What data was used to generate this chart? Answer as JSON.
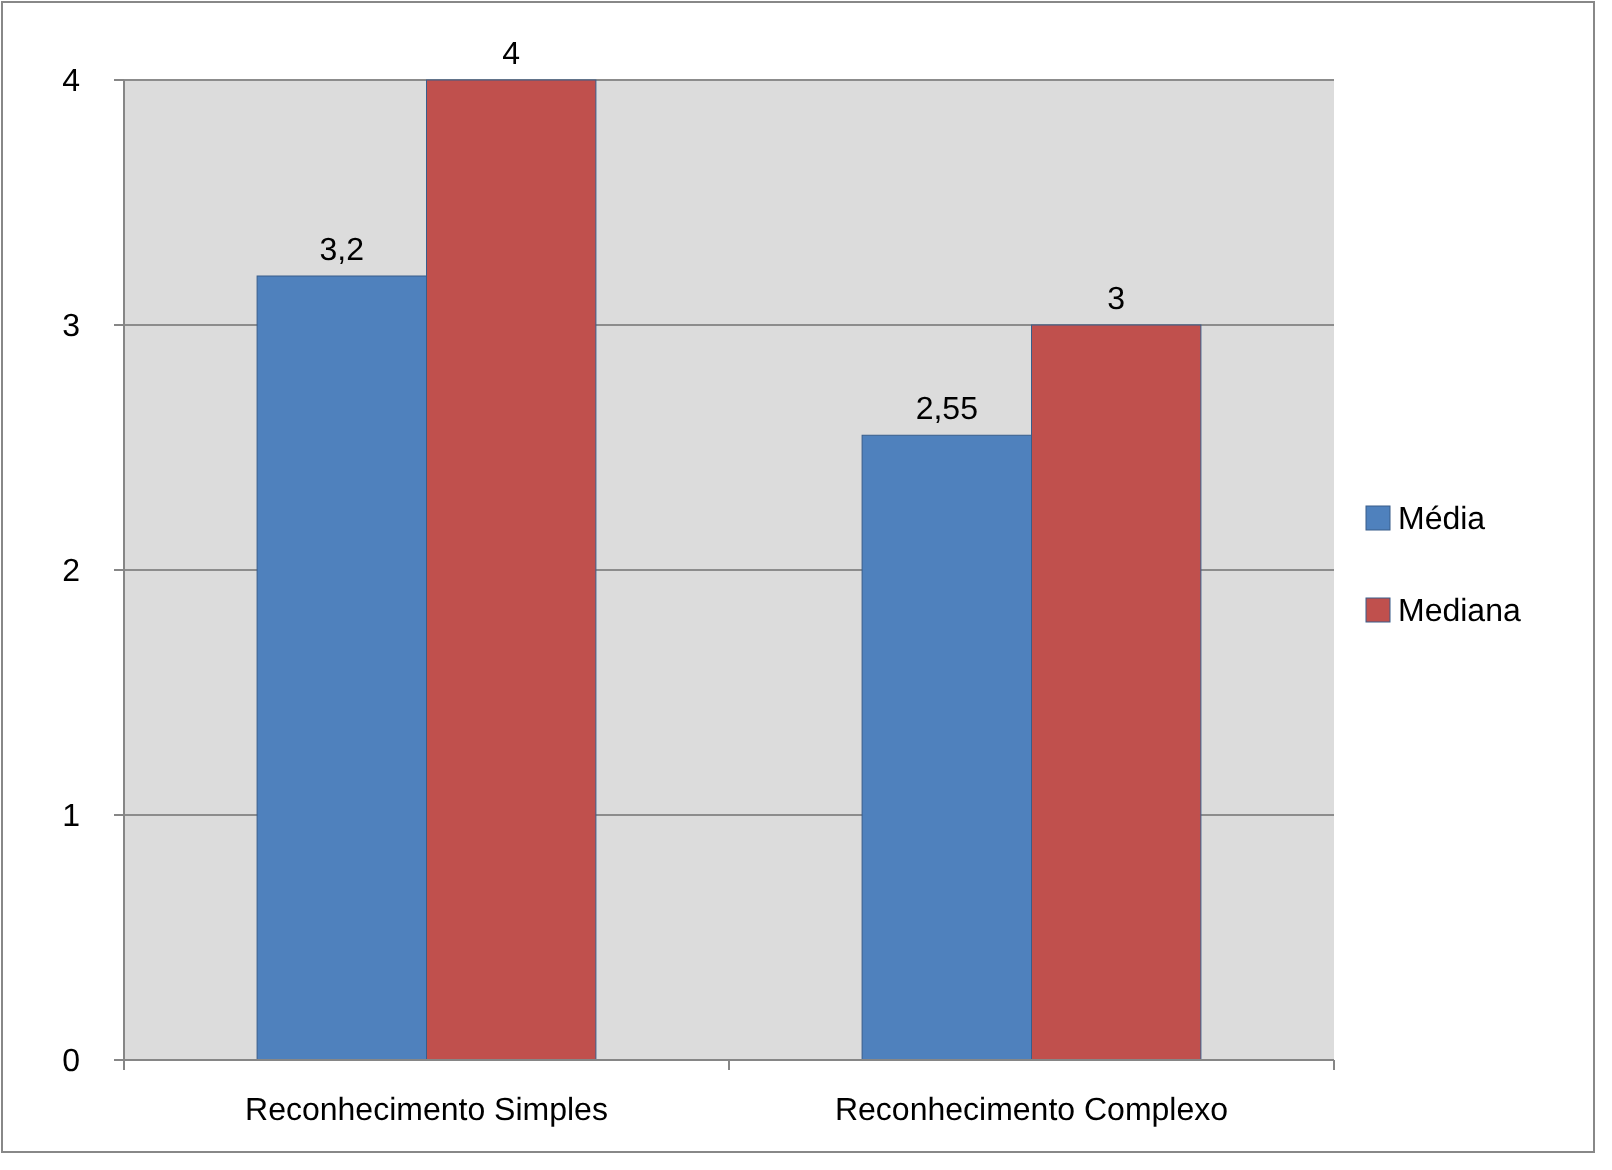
{
  "chart_data": {
    "type": "bar",
    "categories": [
      "Reconhecimento Simples",
      "Reconhecimento Complexo"
    ],
    "series": [
      {
        "name": "Média",
        "color": "#4f81bd",
        "values": [
          3.2,
          2.55
        ],
        "value_labels": [
          "3,2",
          "2,55"
        ]
      },
      {
        "name": "Mediana",
        "color": "#c0504d",
        "values": [
          4,
          3
        ],
        "value_labels": [
          "4",
          "3"
        ]
      }
    ],
    "ylim": [
      0,
      4
    ],
    "yticks": [
      0,
      1,
      2,
      3,
      4
    ],
    "grid": "y",
    "legend": "right"
  }
}
